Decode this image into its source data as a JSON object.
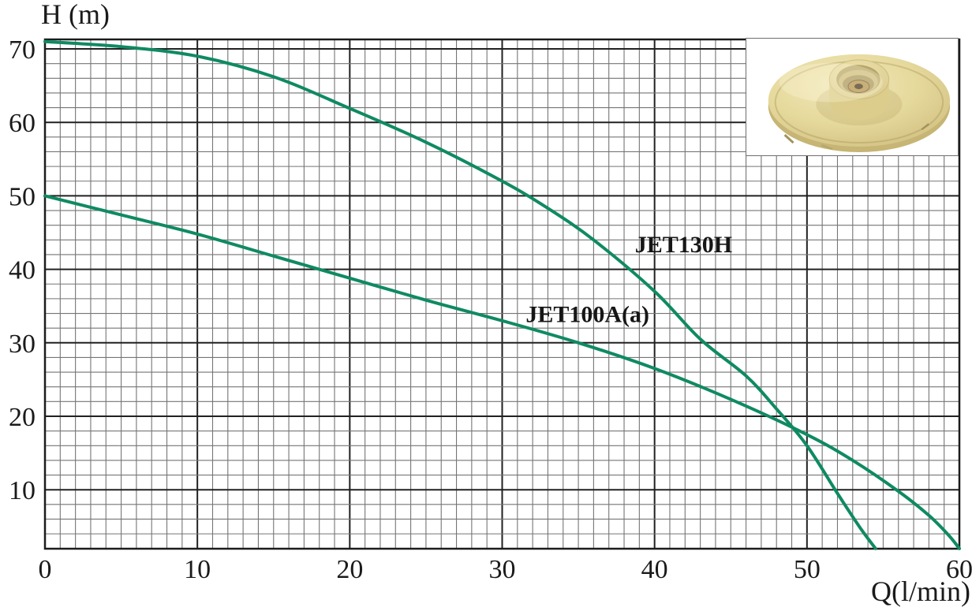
{
  "colors": {
    "curve": "#0f8a63",
    "grid_minor": "#757575",
    "grid_major": "#212121",
    "frame": "#1c1c1c",
    "text": "#1a1a1a",
    "background": "#ffffff",
    "inset_border": "#6e6e6e",
    "impeller_body": "#e6d99c",
    "impeller_brass": "#b2904d"
  },
  "chart_data": {
    "type": "line",
    "title": "",
    "xlabel": "Q(l/min)",
    "ylabel": "H (m)",
    "xlim": [
      0,
      60
    ],
    "ylim": [
      2,
      71.3
    ],
    "x_ticks": [
      0,
      10,
      20,
      30,
      40,
      50,
      60
    ],
    "y_ticks": [
      10,
      20,
      30,
      40,
      50,
      60,
      70
    ],
    "grid": {
      "on": true,
      "x_minor_step": 1,
      "x_major_step": 10,
      "y_minor_step": 2,
      "y_major_step": 10
    },
    "legend_position": "inline-labels",
    "series": [
      {
        "name": "JET130H",
        "points": [
          [
            0,
            71
          ],
          [
            5,
            70.3
          ],
          [
            10,
            69
          ],
          [
            15,
            66.2
          ],
          [
            20,
            61.9
          ],
          [
            25,
            57.3
          ],
          [
            30,
            52
          ],
          [
            33,
            48.3
          ],
          [
            36,
            44
          ],
          [
            40,
            37
          ],
          [
            43,
            30.5
          ],
          [
            46,
            25.5
          ],
          [
            48,
            21
          ],
          [
            50,
            16
          ],
          [
            52,
            9.5
          ],
          [
            53.5,
            4.8
          ],
          [
            54.5,
            2
          ]
        ]
      },
      {
        "name": "JET100A(a)",
        "points": [
          [
            0,
            50
          ],
          [
            5,
            47.4
          ],
          [
            10,
            44.8
          ],
          [
            15,
            41.8
          ],
          [
            20,
            38.8
          ],
          [
            25,
            35.8
          ],
          [
            30,
            33
          ],
          [
            35,
            30
          ],
          [
            40,
            26.5
          ],
          [
            45,
            22.3
          ],
          [
            50,
            17.5
          ],
          [
            53,
            14
          ],
          [
            56,
            9.8
          ],
          [
            58,
            6.5
          ],
          [
            59.3,
            3.8
          ],
          [
            60,
            2
          ]
        ]
      }
    ],
    "labels": [
      {
        "text": "JET130H",
        "q": 41.9,
        "h": 43.5
      },
      {
        "text": "JET100A(a)",
        "q": 35.6,
        "h": 34.0
      }
    ],
    "crossing_point": [
      49.5,
      17.6
    ]
  }
}
